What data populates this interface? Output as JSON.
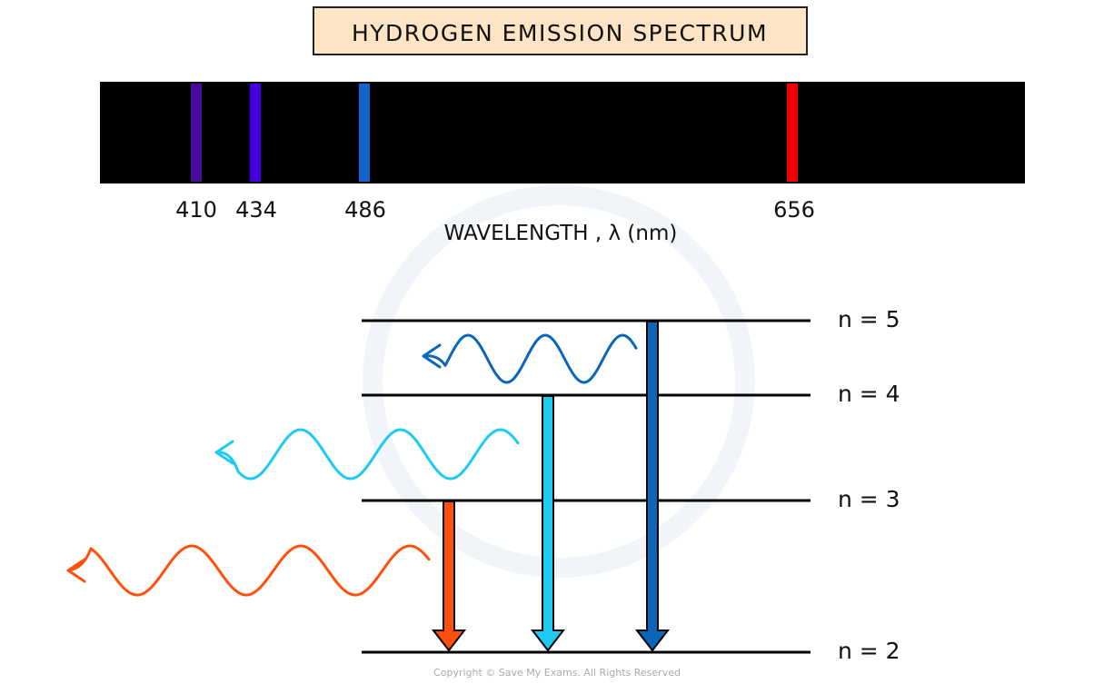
{
  "title": "HYDROGEN EMISSION SPECTRUM",
  "spectrum": {
    "lines": [
      {
        "wavelength": "410",
        "color": "#4b0a9e"
      },
      {
        "wavelength": "434",
        "color": "#4400e0"
      },
      {
        "wavelength": "486",
        "color": "#1166cc"
      },
      {
        "wavelength": "656",
        "color": "#ee0000"
      }
    ],
    "axis_label": "WAVELENGTH , λ (nm)"
  },
  "levels": [
    {
      "label": "n = 5"
    },
    {
      "label": "n = 4"
    },
    {
      "label": "n = 3"
    },
    {
      "label": "n = 2"
    }
  ],
  "transitions": [
    {
      "from": "n = 5",
      "to": "n = 2",
      "color": "#0a66b8"
    },
    {
      "from": "n = 4",
      "to": "n = 2",
      "color": "#1ccaf2"
    },
    {
      "from": "n = 3",
      "to": "n = 2",
      "color": "#ff4f0a"
    }
  ],
  "copyright": "Copyright © Save My Exams. All Rights Reserved"
}
